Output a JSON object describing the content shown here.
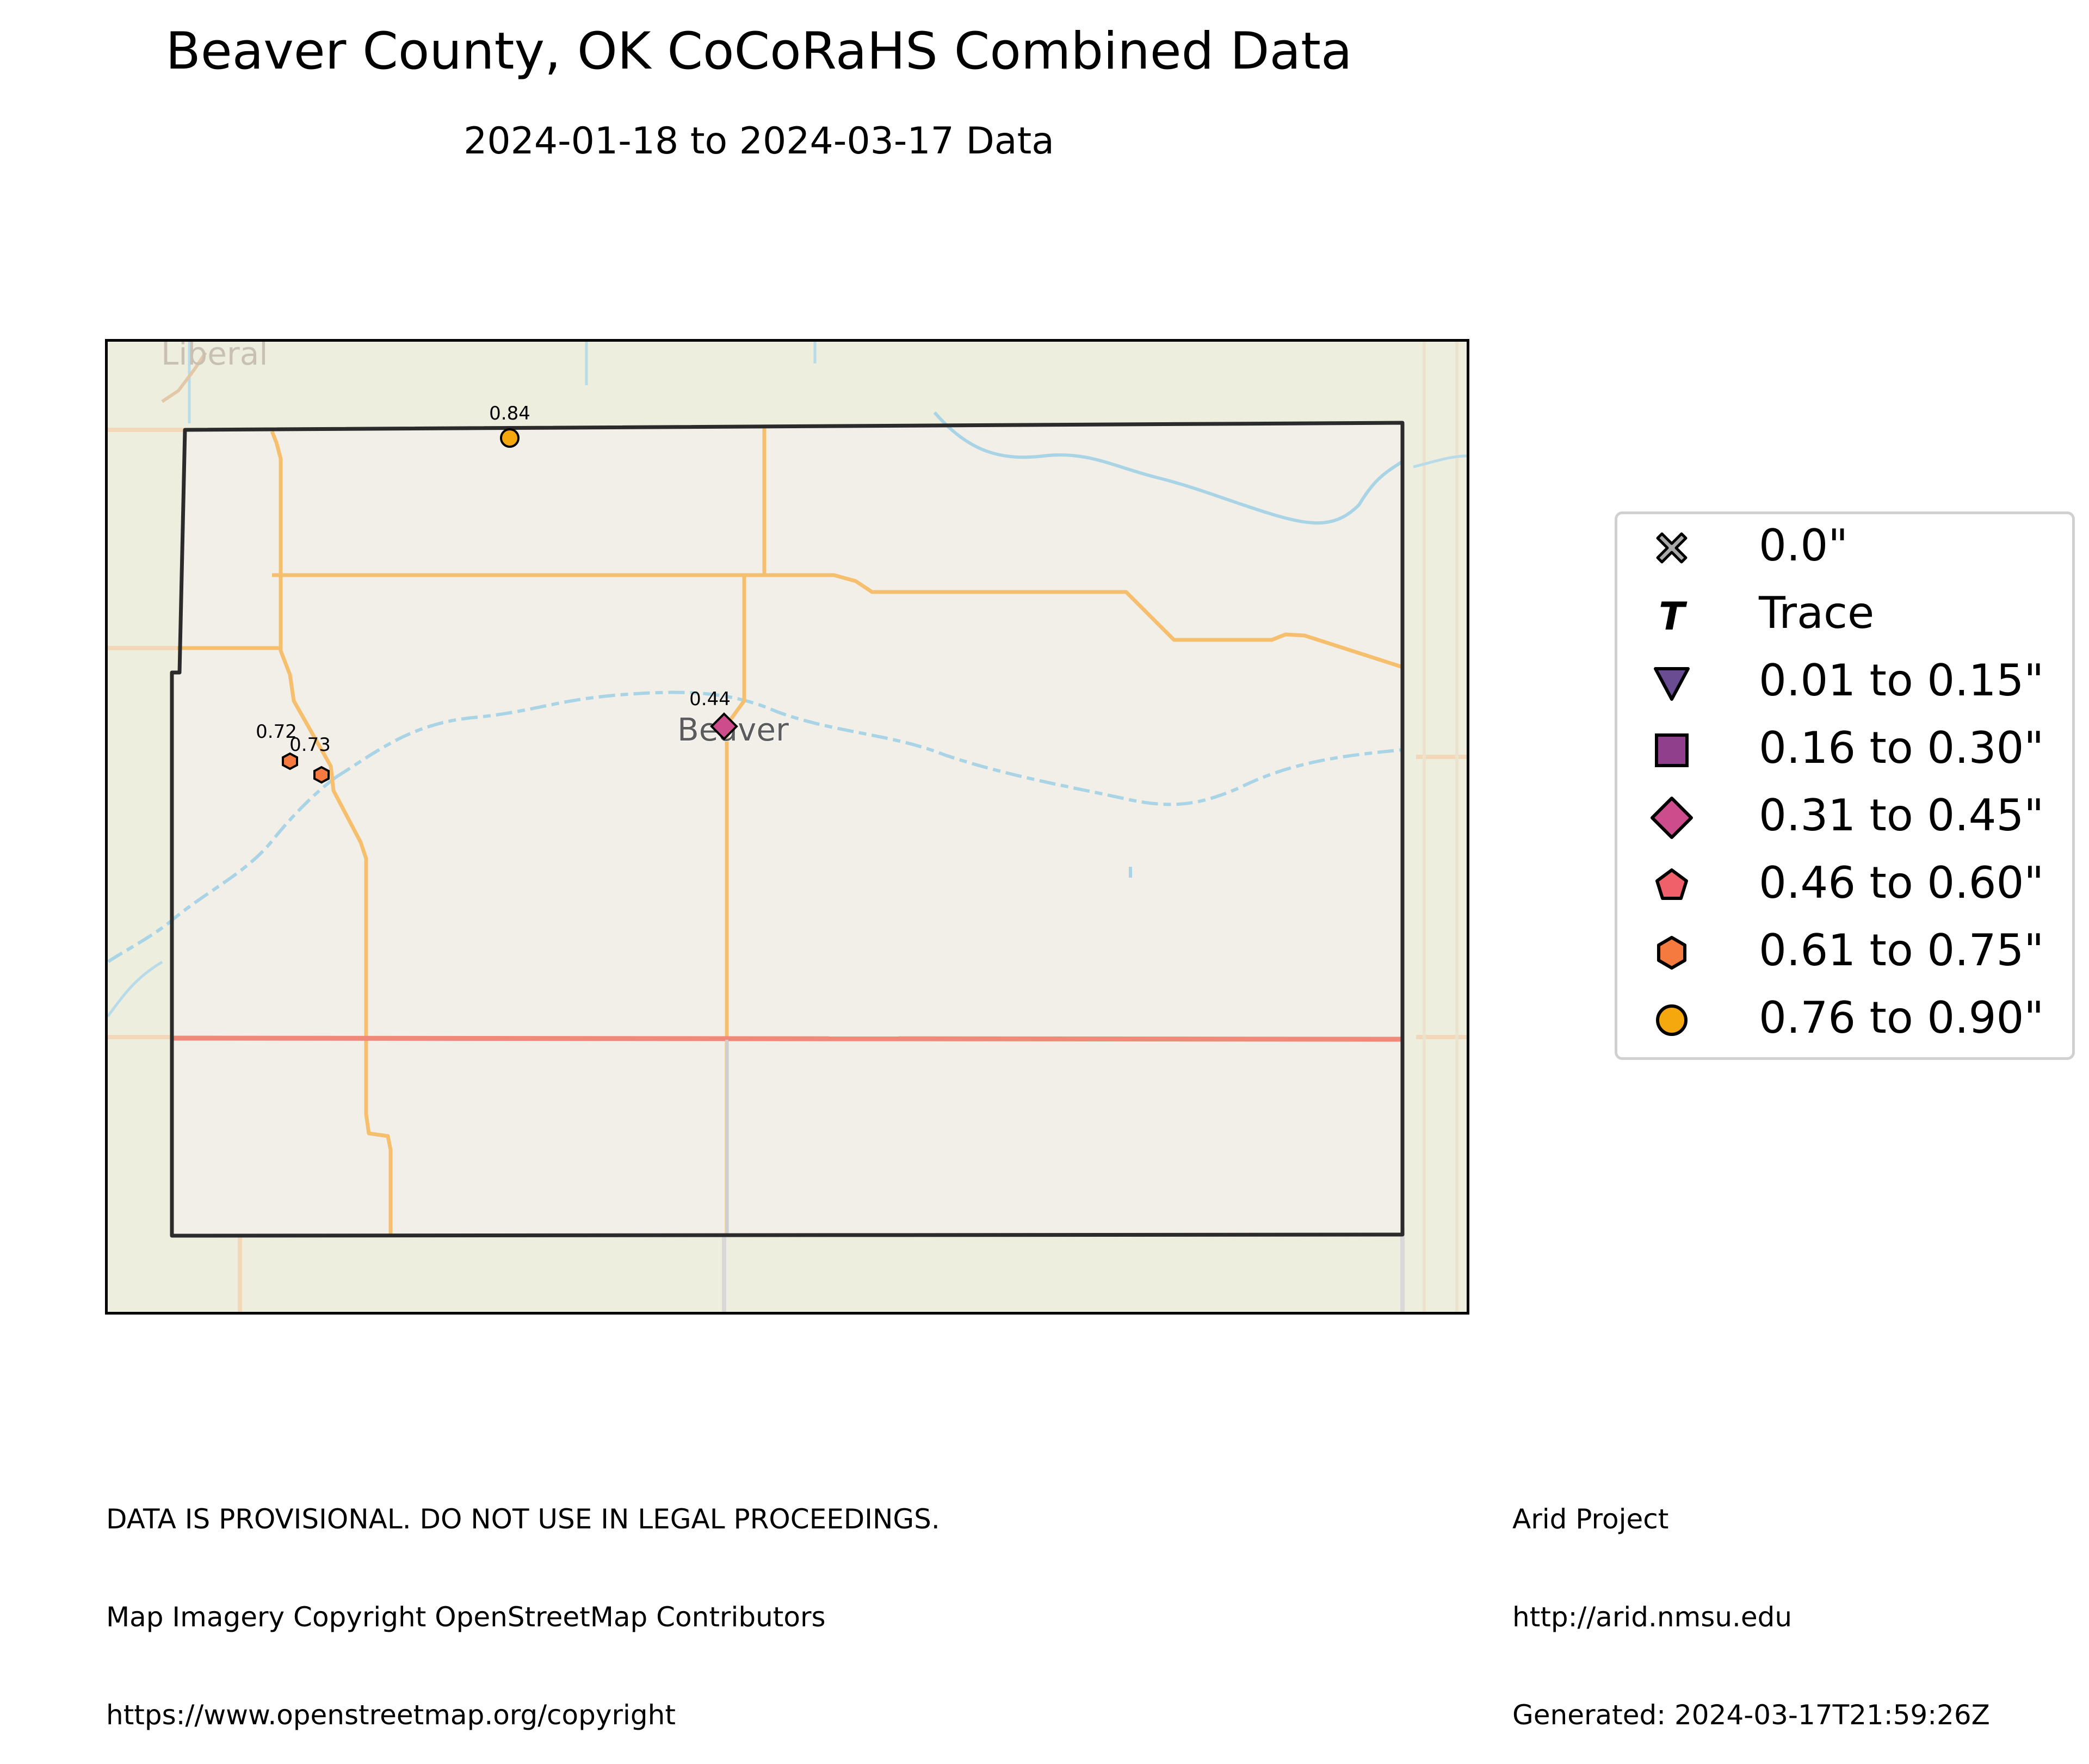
{
  "title": "Beaver County, OK CoCoRaHS Combined Data",
  "subtitle": "2024-01-18 to 2024-03-17 Data",
  "map": {
    "place_labels": {
      "liberal": "Liberal",
      "beaver": "Beaver"
    },
    "colors": {
      "background": "#edeedd",
      "county_fill": "#f2efe8",
      "road_orange": "#f5bf6e",
      "road_red": "#ef8a7a",
      "river": "#a9d4e6",
      "county_border": "#2b2b2b"
    },
    "stations": [
      {
        "id": "north",
        "label": "0.84",
        "value": 0.84,
        "category": "0.76 to 0.90\""
      },
      {
        "id": "beaver",
        "label": "0.44",
        "value": 0.44,
        "category": "0.31 to 0.45\""
      },
      {
        "id": "west-a",
        "label": "0.72",
        "value": 0.72,
        "category": "0.61 to 0.75\""
      },
      {
        "id": "west-b",
        "label": "0.73",
        "value": 0.73,
        "category": "0.61 to 0.75\""
      }
    ]
  },
  "legend": {
    "items": [
      {
        "label": "0.0\"",
        "symbol": "x-icon",
        "color": "#a9a9a9"
      },
      {
        "label": "Trace",
        "symbol": "trace-t-icon",
        "color": "#000000"
      },
      {
        "label": "0.01 to 0.15\"",
        "symbol": "triangle-down-icon",
        "color": "#6a4c93"
      },
      {
        "label": "0.16 to 0.30\"",
        "symbol": "square-icon",
        "color": "#8f3f8c"
      },
      {
        "label": "0.31 to 0.45\"",
        "symbol": "diamond-icon",
        "color": "#cc4c8c"
      },
      {
        "label": "0.46 to 0.60\"",
        "symbol": "pentagon-icon",
        "color": "#f0606a"
      },
      {
        "label": "0.61 to 0.75\"",
        "symbol": "hexagon-icon",
        "color": "#f47a40"
      },
      {
        "label": "0.76 to 0.90\"",
        "symbol": "circle-icon",
        "color": "#f5a70e"
      }
    ]
  },
  "footer": {
    "left": [
      "DATA IS PROVISIONAL. DO NOT USE IN LEGAL PROCEEDINGS.",
      "Map Imagery Copyright OpenStreetMap Contributors",
      "https://www.openstreetmap.org/copyright"
    ],
    "right": [
      "Arid Project",
      "http://arid.nmsu.edu",
      "Generated: 2024-03-17T21:59:26Z"
    ]
  }
}
